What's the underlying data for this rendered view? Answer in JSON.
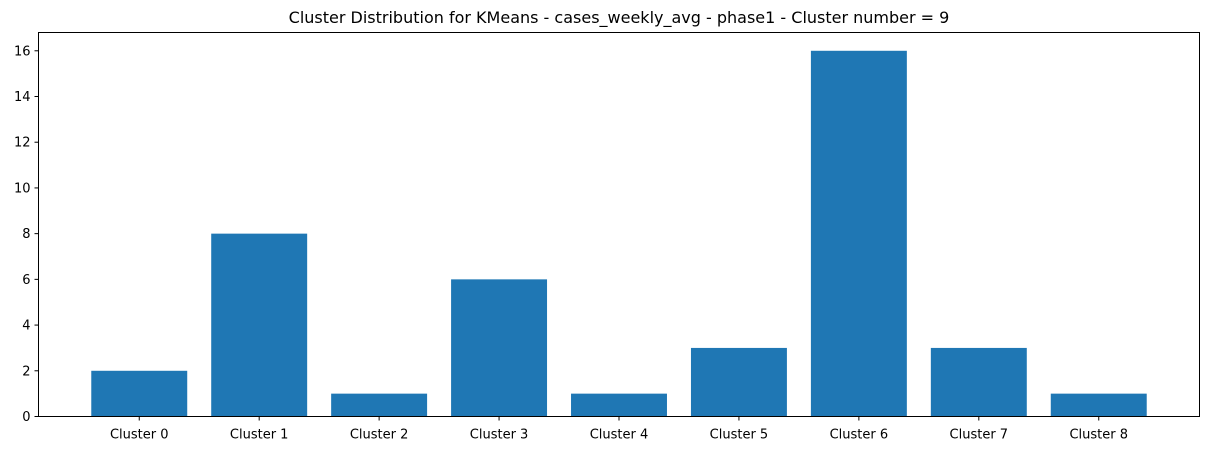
{
  "chart_data": {
    "type": "bar",
    "title": "Cluster Distribution for KMeans - cases_weekly_avg - phase1 - Cluster number = 9",
    "xlabel": "",
    "ylabel": "",
    "categories": [
      "Cluster 0",
      "Cluster 1",
      "Cluster 2",
      "Cluster 3",
      "Cluster 4",
      "Cluster 5",
      "Cluster 6",
      "Cluster 7",
      "Cluster 8"
    ],
    "values": [
      2,
      8,
      1,
      6,
      1,
      3,
      16,
      3,
      1
    ],
    "ylim": [
      0,
      16.8
    ],
    "yticks": [
      0,
      2,
      4,
      6,
      8,
      10,
      12,
      14,
      16
    ],
    "grid": false,
    "legend": "none",
    "bar_color": "#1f77b4"
  }
}
